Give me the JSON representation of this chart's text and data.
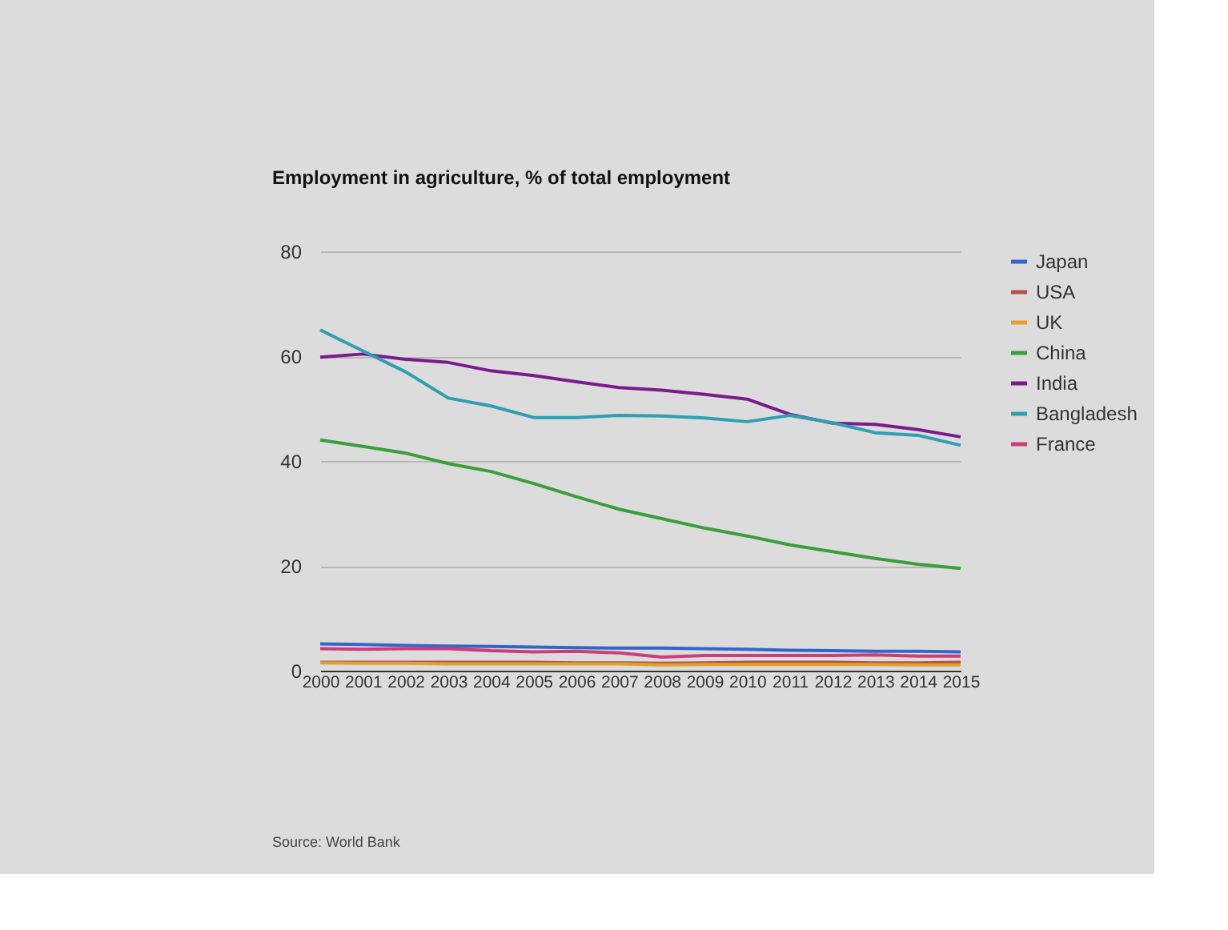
{
  "chart_data": {
    "type": "line",
    "title": "Employment in agriculture, % of total employment",
    "x": [
      2000,
      2001,
      2002,
      2003,
      2004,
      2005,
      2006,
      2007,
      2008,
      2009,
      2010,
      2011,
      2012,
      2013,
      2014,
      2015
    ],
    "xlim": [
      2000,
      2015
    ],
    "xticks": [
      2000,
      2001,
      2002,
      2003,
      2004,
      2005,
      2006,
      2007,
      2008,
      2009,
      2010,
      2011,
      2012,
      2013,
      2014,
      2015
    ],
    "ylim": [
      0,
      80
    ],
    "yticks": [
      0,
      20,
      40,
      60,
      80
    ],
    "grid": "y",
    "legend": "top right",
    "line_style": "solid",
    "series": [
      {
        "name": "Japan",
        "color": "#3366cc",
        "values": [
          5.1,
          5.0,
          4.8,
          4.7,
          4.6,
          4.5,
          4.4,
          4.3,
          4.3,
          4.2,
          4.1,
          3.9,
          3.8,
          3.7,
          3.7,
          3.6
        ]
      },
      {
        "name": "USA",
        "color": "#b5534a",
        "values": [
          1.6,
          1.6,
          1.6,
          1.6,
          1.6,
          1.6,
          1.5,
          1.5,
          1.4,
          1.5,
          1.6,
          1.6,
          1.6,
          1.5,
          1.5,
          1.6
        ]
      },
      {
        "name": "UK",
        "color": "#e0a030",
        "values": [
          1.5,
          1.4,
          1.4,
          1.3,
          1.3,
          1.3,
          1.3,
          1.3,
          1.1,
          1.2,
          1.2,
          1.2,
          1.2,
          1.2,
          1.1,
          1.1
        ]
      },
      {
        "name": "China",
        "color": "#3a9e3a",
        "values": [
          44,
          42.8,
          41.5,
          39.5,
          38,
          35.7,
          33.2,
          30.8,
          29,
          27.2,
          25.7,
          24,
          22.7,
          21.4,
          20.3,
          19.5
        ]
      },
      {
        "name": "India",
        "color": "#7b1a8c",
        "values": [
          59.8,
          60.4,
          59.4,
          58.8,
          57.2,
          56.3,
          55.1,
          54,
          53.5,
          52.7,
          51.8,
          48.9,
          47.2,
          47,
          46,
          44.6
        ]
      },
      {
        "name": "Bangladesh",
        "color": "#2e9fb0",
        "values": [
          65,
          61,
          57,
          52,
          50.5,
          48.3,
          48.3,
          48.7,
          48.6,
          48.2,
          47.5,
          48.7,
          47.3,
          45.4,
          44.9,
          43
        ]
      },
      {
        "name": "France",
        "color": "#cc3d7a",
        "values": [
          4.2,
          4.1,
          4.2,
          4.2,
          3.8,
          3.6,
          3.7,
          3.4,
          2.6,
          2.9,
          2.9,
          2.9,
          2.9,
          3.0,
          2.8,
          2.8
        ]
      }
    ],
    "annotations": [
      "Source: World Bank"
    ]
  }
}
